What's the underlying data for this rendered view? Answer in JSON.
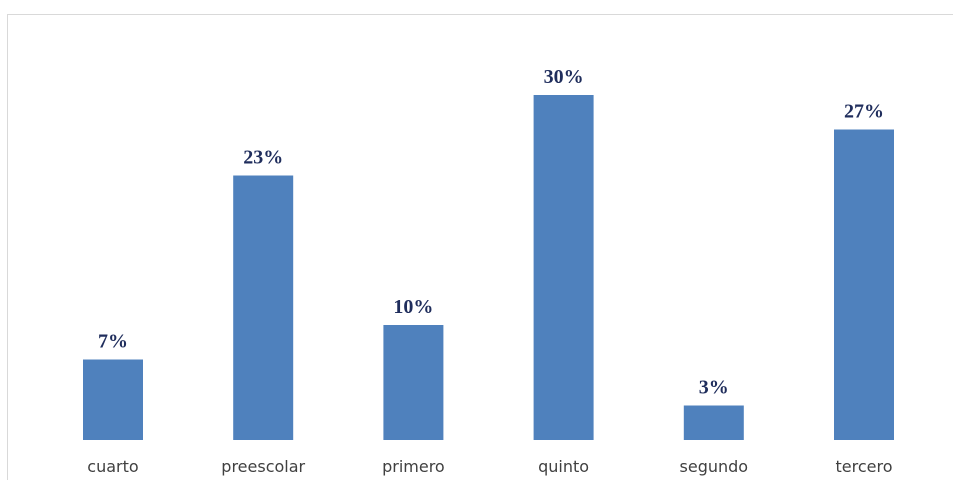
{
  "chart_data": {
    "type": "bar",
    "title": "",
    "xlabel": "",
    "ylabel": "",
    "categories": [
      "cuarto",
      "preescolar",
      "primero",
      "quinto",
      "segundo",
      "tercero"
    ],
    "values": [
      7,
      23,
      10,
      30,
      3,
      27
    ],
    "value_labels": [
      "7%",
      "23%",
      "10%",
      "30%",
      "3%",
      "27%"
    ],
    "ylim": [
      0,
      30
    ],
    "grid": false,
    "legend": "none",
    "colors": {
      "bar": "#4f81bd",
      "data_label": "#1f2d5c",
      "tick_label": "#404040",
      "axis": "#d9d9d9"
    }
  }
}
